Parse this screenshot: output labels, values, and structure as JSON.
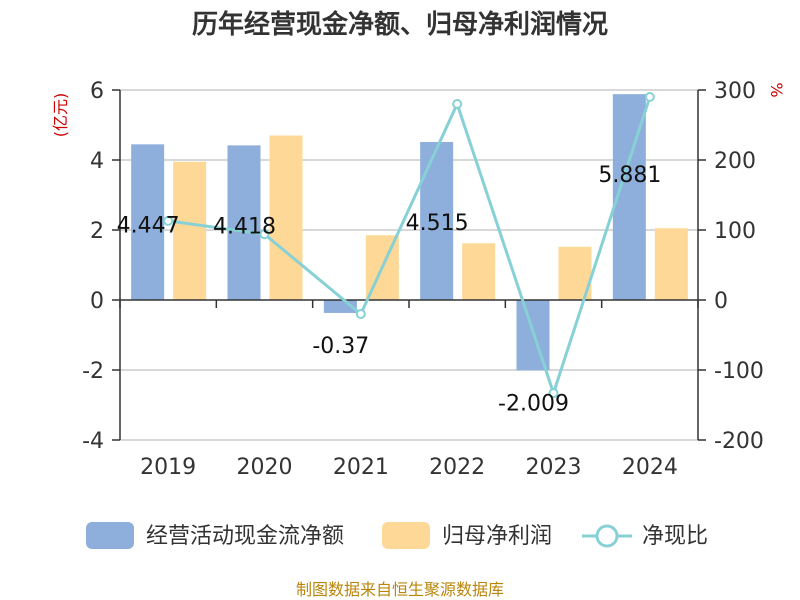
{
  "chart_data": {
    "type": "bar",
    "title": "历年经营现金净额、归母净利润情况",
    "categories": [
      "2019",
      "2020",
      "2021",
      "2022",
      "2023",
      "2024"
    ],
    "left_axis": {
      "unit_label": "(亿元)",
      "ylim": [
        -4,
        6
      ],
      "ticks": [
        "6",
        "4",
        "2",
        "0",
        "-2",
        "-4"
      ],
      "tick_values": [
        6,
        4,
        2,
        0,
        -2,
        -4
      ]
    },
    "right_axis": {
      "unit_label": "%",
      "ylim": [
        -200,
        300
      ],
      "ticks": [
        "300",
        "200",
        "100",
        "0",
        "-100",
        "-200"
      ],
      "tick_values": [
        300,
        200,
        100,
        0,
        -100,
        -200
      ]
    },
    "series": [
      {
        "name": "经营活动现金流净额",
        "type": "bar",
        "axis": "left",
        "color": "#8eaedb",
        "values": [
          4.447,
          4.418,
          -0.37,
          4.515,
          -2.009,
          5.881
        ],
        "labels": [
          "4.447",
          "4.418",
          "-0.37",
          "4.515",
          "-2.009",
          "5.881"
        ]
      },
      {
        "name": "归母净利润",
        "type": "bar",
        "axis": "left",
        "color": "#fed896",
        "values": [
          3.95,
          4.7,
          1.85,
          1.62,
          1.52,
          2.05
        ]
      },
      {
        "name": "净现比",
        "type": "line",
        "axis": "right",
        "color": "#87d1d6",
        "values": [
          113,
          94,
          -20,
          280,
          -133,
          290
        ]
      }
    ],
    "grid": true,
    "legend_position": "bottom",
    "source": "制图数据来自恒生聚源数据库",
    "colors": {
      "axis_unit": "#cc0000",
      "source_text": "#b8860b",
      "grid": "#cccccc",
      "axis": "#333333"
    }
  }
}
